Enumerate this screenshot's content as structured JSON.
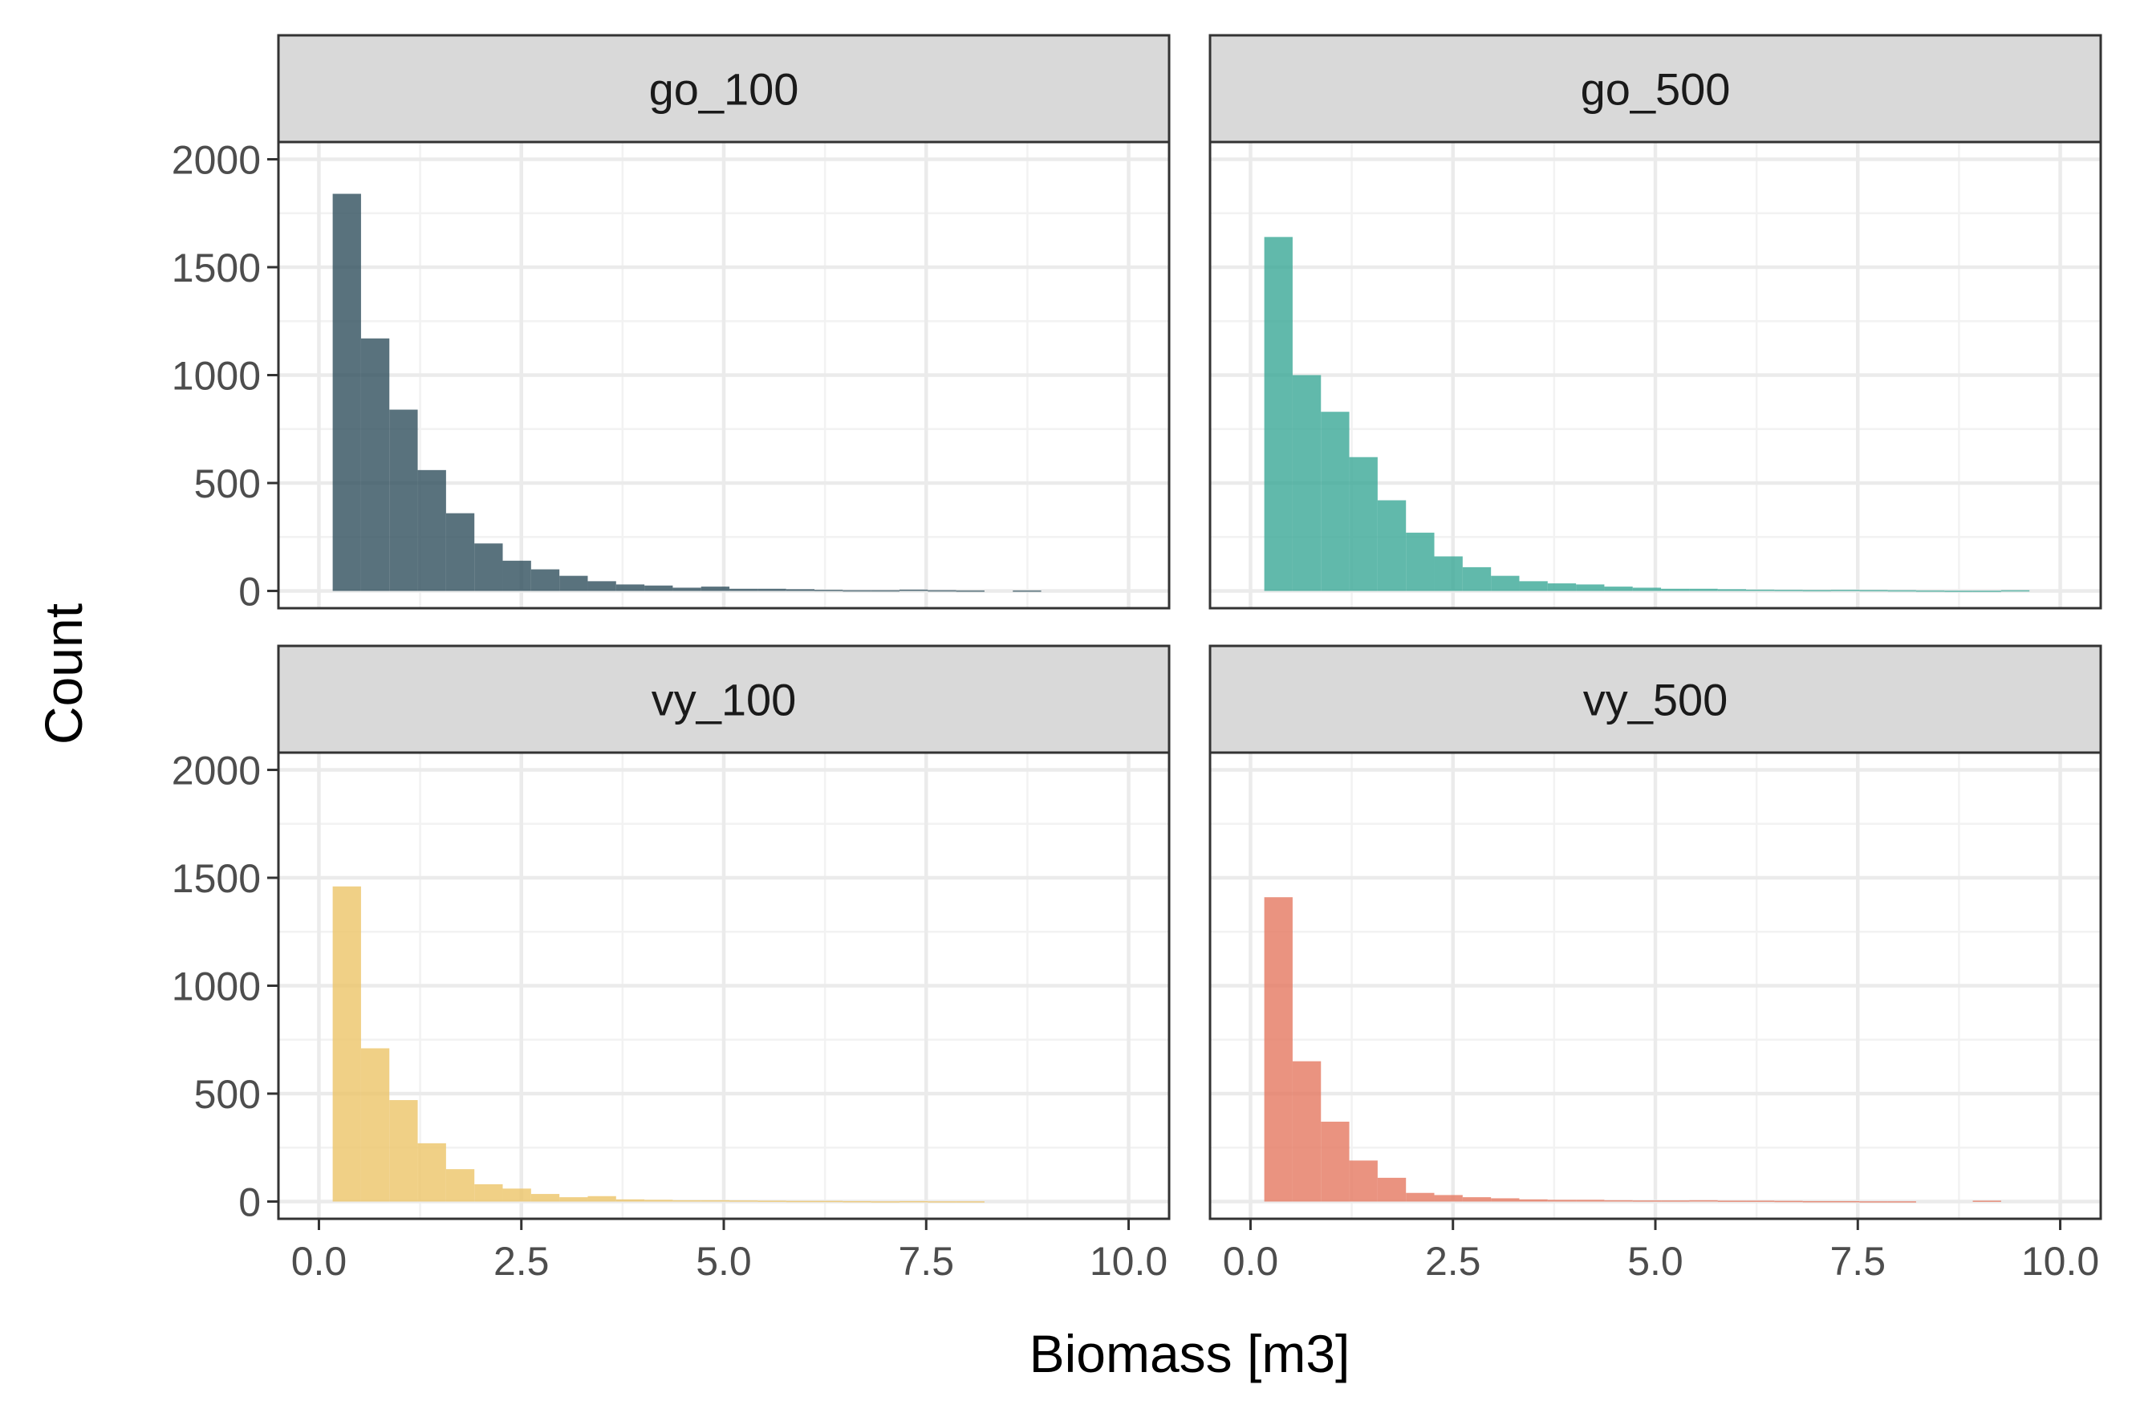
{
  "chart_data": {
    "type": "bar",
    "subtype": "histogram",
    "xlabel": "Biomass [m3]",
    "ylabel": "Count",
    "xlim": [
      -0.5,
      10.5
    ],
    "ylim": [
      -80,
      2080
    ],
    "x_ticks": [
      "0.0",
      "2.5",
      "5.0",
      "7.5",
      "10.0"
    ],
    "x_tick_values": [
      0,
      2.5,
      5,
      7.5,
      10
    ],
    "y_ticks": [
      "0",
      "500",
      "1000",
      "1500",
      "2000"
    ],
    "y_tick_values": [
      0,
      500,
      1000,
      1500,
      2000
    ],
    "bin_width": 0.35,
    "bin_start": 0.17,
    "grid": true,
    "facet_layout": "2x2",
    "panels": [
      {
        "name": "go_100",
        "color": "#2f4f5c",
        "counts": [
          1840,
          1170,
          840,
          560,
          360,
          220,
          140,
          100,
          70,
          45,
          30,
          25,
          15,
          20,
          10,
          10,
          8,
          5,
          3,
          3,
          6,
          3,
          2,
          0,
          2,
          0,
          0,
          0
        ]
      },
      {
        "name": "go_500",
        "color": "#3aa796",
        "counts": [
          1640,
          1000,
          830,
          620,
          420,
          270,
          160,
          110,
          70,
          45,
          35,
          30,
          20,
          15,
          10,
          10,
          8,
          6,
          5,
          4,
          5,
          4,
          3,
          2,
          1,
          1,
          3,
          0
        ]
      },
      {
        "name": "vy_100",
        "color": "#ecc468",
        "counts": [
          1460,
          710,
          470,
          270,
          150,
          80,
          60,
          35,
          20,
          25,
          10,
          8,
          6,
          6,
          5,
          4,
          3,
          3,
          2,
          1,
          2,
          1,
          1,
          0,
          0,
          0,
          0,
          0
        ]
      },
      {
        "name": "vy_500",
        "color": "#e57860",
        "counts": [
          1410,
          650,
          370,
          190,
          110,
          40,
          30,
          20,
          15,
          10,
          8,
          8,
          6,
          5,
          5,
          6,
          4,
          4,
          3,
          2,
          2,
          1,
          1,
          0,
          0,
          4,
          0,
          0
        ]
      }
    ]
  }
}
